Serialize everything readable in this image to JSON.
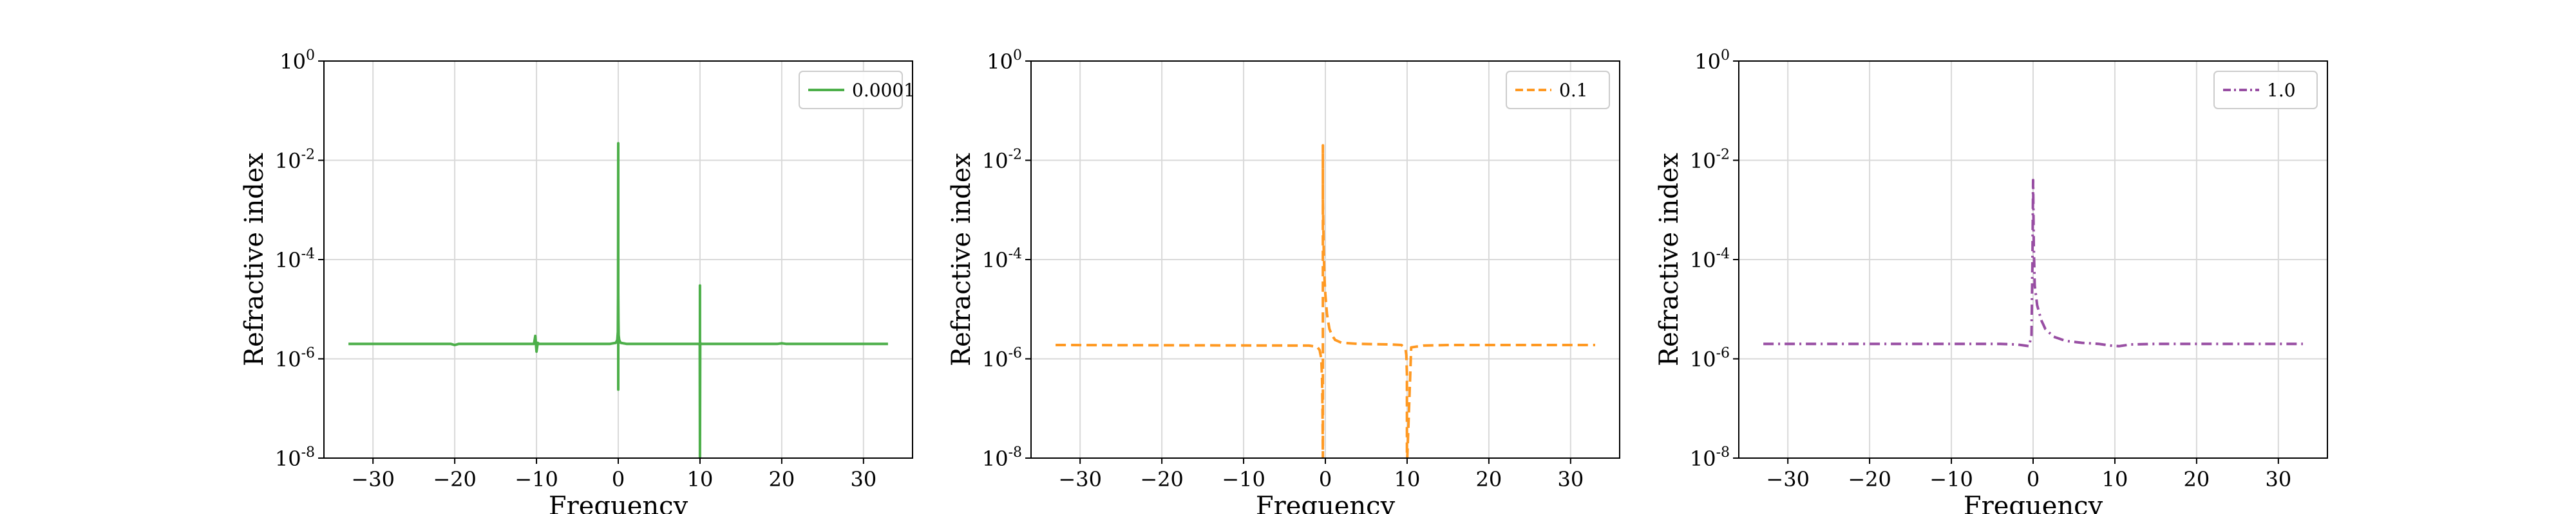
{
  "chart_data": [
    {
      "type": "line",
      "xlabel": "Frequency",
      "ylabel": "Refractive index",
      "xlim": [
        -36,
        36
      ],
      "ylim": [
        1e-08,
        1
      ],
      "yscale": "log",
      "grid": true,
      "legend_position": "top-right",
      "x_ticks": [
        -30,
        -20,
        -10,
        0,
        10,
        20,
        30
      ],
      "x_tick_labels": [
        "−30",
        "−20",
        "−10",
        "0",
        "10",
        "20",
        "30"
      ],
      "y_ticks": [
        1e-08,
        1e-06,
        0.0001,
        0.01,
        1
      ],
      "y_tick_labels": [
        {
          "base": "10",
          "exp": "-8"
        },
        {
          "base": "10",
          "exp": "-6"
        },
        {
          "base": "10",
          "exp": "-4"
        },
        {
          "base": "10",
          "exp": "-2"
        },
        {
          "base": "10",
          "exp": "0"
        }
      ],
      "series": [
        {
          "name": "0.0001",
          "color": "#4daf4a",
          "dash": "solid",
          "x": [
            -33,
            -20.5,
            -20,
            -19.5,
            -10.3,
            -10.15,
            -10,
            -9.85,
            -9.7,
            -1,
            -0.3,
            -0.12,
            -0.05,
            -0.02,
            0,
            0,
            0,
            0.02,
            0.05,
            0.12,
            0.3,
            1,
            9.5,
            9.85,
            9.97,
            10,
            10,
            10,
            10.03,
            10.15,
            10.5,
            19.5,
            20,
            20.5,
            33
          ],
          "y": [
            2e-06,
            2e-06,
            1.9e-06,
            2e-06,
            2e-06,
            2.9e-06,
            1.4e-06,
            2.1e-06,
            2e-06,
            2e-06,
            2.1e-06,
            2.4e-06,
            3.5e-06,
            2e-05,
            0.022,
            2.4e-07,
            2.2e-05,
            6e-06,
            3e-06,
            2.4e-06,
            2.1e-06,
            2e-06,
            2e-06,
            2e-06,
            1.9e-06,
            1e-08,
            3e-05,
            1e-08,
            2.1e-06,
            2e-06,
            2e-06,
            2e-06,
            2.05e-06,
            2e-06,
            2e-06
          ]
        },
        {
          "name": "0.1",
          "color": "#ff9922",
          "dash": "dashed",
          "x": [
            -33,
            -2,
            -1,
            -0.7,
            -0.5,
            -0.4,
            -0.35,
            -0.3,
            -0.3,
            -0.3,
            -0.2,
            -0.1,
            0,
            0.2,
            0.5,
            0.8,
            1.2,
            2,
            4,
            8,
            9.3,
            9.8,
            9.9,
            9.98,
            9.98,
            10.02,
            10.5,
            12,
            15,
            20,
            33
          ],
          "y": [
            1.9e-06,
            1.85e-06,
            1.75e-06,
            1.5e-06,
            1e-06,
            4e-07,
            1e-07,
            1e-08,
            0.02,
            0.0015,
            0.00015,
            4e-05,
            2e-05,
            8e-06,
            4e-06,
            3e-06,
            2.4e-06,
            2.1e-06,
            2e-06,
            1.95e-06,
            1.9e-06,
            1.6e-06,
            1.2e-06,
            5e-07,
            1e-08,
            1e-08,
            1.7e-06,
            1.85e-06,
            1.9e-06,
            1.9e-06,
            1.9e-06
          ]
        },
        {
          "name": "1.0",
          "color": "#984ea3",
          "dash": "dashdot",
          "x": [
            -33,
            -10,
            -4,
            -2,
            -1,
            -0.5,
            -0.2,
            -0.08,
            0,
            0.08,
            0.2,
            0.5,
            1,
            1.5,
            2.5,
            4,
            6,
            8,
            9.5,
            10.5,
            12,
            15,
            20,
            33
          ],
          "y": [
            2e-06,
            2e-06,
            2e-06,
            1.95e-06,
            1.85e-06,
            1.8e-06,
            3e-06,
            0.0001,
            0.004,
            0.0002,
            3e-05,
            1.2e-05,
            6e-06,
            4e-06,
            2.8e-06,
            2.3e-06,
            2.1e-06,
            2e-06,
            1.85e-06,
            1.8e-06,
            1.95e-06,
            2e-06,
            2e-06,
            2e-06
          ]
        }
      ]
    }
  ]
}
